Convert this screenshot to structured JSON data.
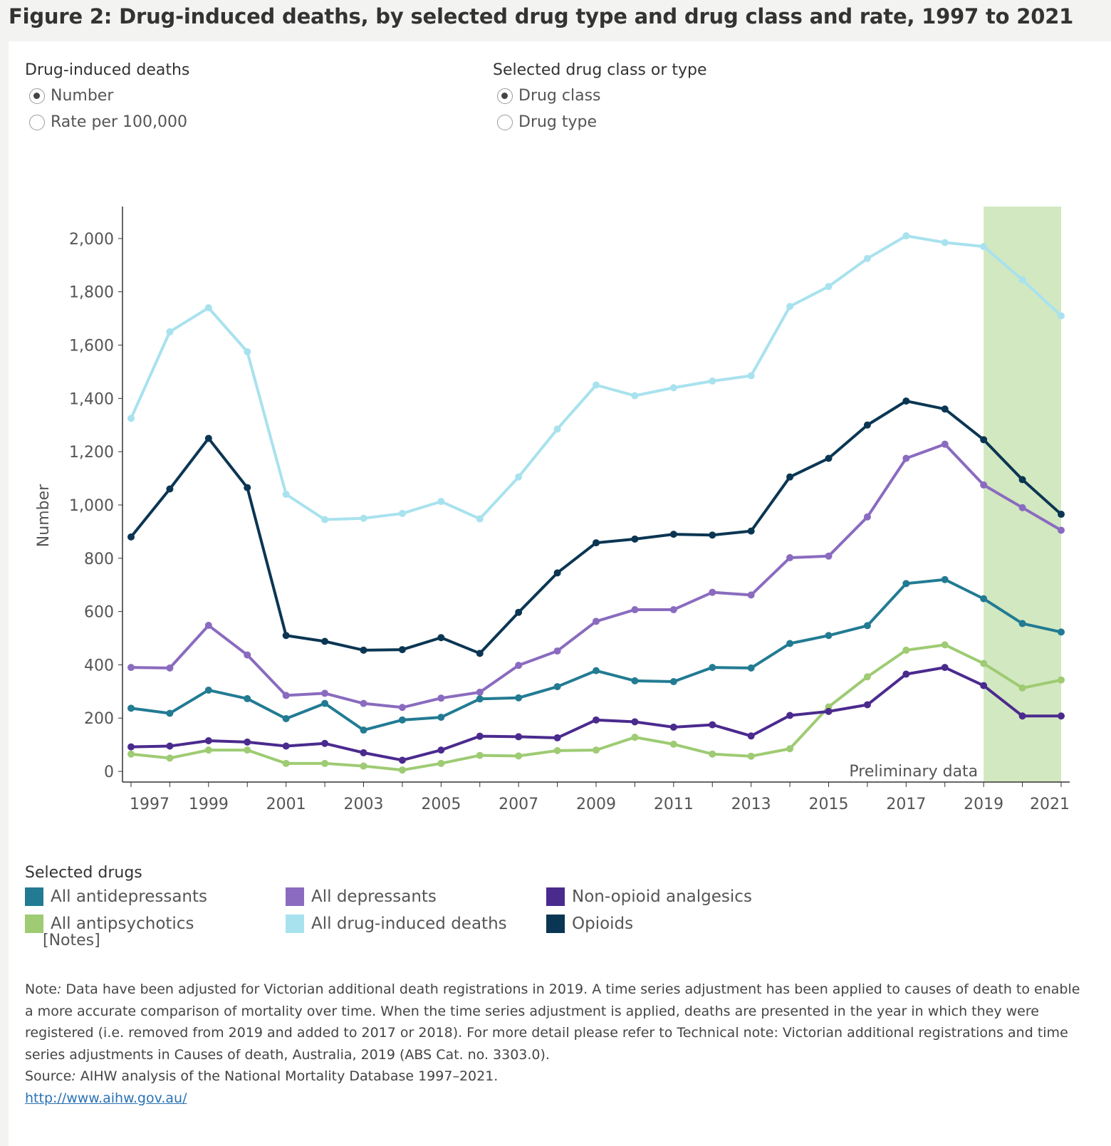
{
  "title": "Figure 2: Drug-induced deaths, by selected drug type and drug class and rate, 1997 to 2021",
  "controls": {
    "measure": {
      "title": "Drug-induced deaths",
      "options": [
        "Number",
        "Rate per 100,000"
      ],
      "selected": 0
    },
    "drug_group": {
      "title": "Selected drug class or type",
      "options": [
        "Drug class",
        "Drug type"
      ],
      "selected": 0
    }
  },
  "legend": {
    "title": "Selected drugs",
    "items": [
      {
        "label": "All antidepressants",
        "color": "#227b93"
      },
      {
        "label": "All depressants",
        "color": "#8a6bbf"
      },
      {
        "label": "Non-opioid analgesics",
        "color": "#4b2a8e"
      },
      {
        "label": "All antipsychotics",
        "color": "#9ecb73"
      },
      {
        "label": "All drug-induced deaths",
        "color": "#a8e2ee"
      },
      {
        "label": "Opioids",
        "color": "#0b3653"
      }
    ]
  },
  "notes_label": "[Notes]",
  "footnote": {
    "note_label": "Note",
    "note_text": " Data have been adjusted for Victorian additional death registrations in 2019. A time series adjustment has been applied to causes of death to enable a more accurate comparison of mortality over time. When the time series adjustment is applied, deaths are presented in the year in which they were registered (i.e. removed from 2019 and added to 2017 or 2018). For more detail please refer to Technical note: Victorian additional registrations and time series adjustments in Causes of death, Australia, 2019 (ABS Cat. no. 3303.0).",
    "source_label": "Source",
    "source_text": " AIHW analysis of the National Mortality Database 1997–2021.",
    "link": "http://www.aihw.gov.au/"
  },
  "chart_data": {
    "type": "line",
    "ylabel": "Number",
    "xlabel": "",
    "ylim": [
      -40,
      2120
    ],
    "yticks": [
      0,
      200,
      400,
      600,
      800,
      1000,
      1200,
      1400,
      1600,
      1800,
      2000
    ],
    "ytick_labels": [
      "0",
      "200",
      "400",
      "600",
      "800",
      "1,000",
      "1,200",
      "1,400",
      "1,600",
      "1,800",
      "2,000"
    ],
    "x": [
      1997,
      1998,
      1999,
      2000,
      2001,
      2002,
      2003,
      2004,
      2005,
      2006,
      2007,
      2008,
      2009,
      2010,
      2011,
      2012,
      2013,
      2014,
      2015,
      2016,
      2017,
      2018,
      2019,
      2020,
      2021
    ],
    "xtick_labels": [
      "1997",
      "1999",
      "2001",
      "2003",
      "2005",
      "2007",
      "2009",
      "2011",
      "2013",
      "2015",
      "2017",
      "2019",
      "2021"
    ],
    "shaded_region": {
      "from": 2019,
      "to": 2021,
      "label": "Preliminary data",
      "color": "#d2e8c0"
    },
    "series": [
      {
        "name": "All drug-induced deaths",
        "color": "#a8e2ee",
        "values": [
          1325,
          1650,
          1740,
          1575,
          1040,
          945,
          950,
          968,
          1013,
          948,
          1105,
          1285,
          1450,
          1410,
          1440,
          1465,
          1485,
          1745,
          1820,
          1925,
          2010,
          1985,
          1970,
          1845,
          1710
        ]
      },
      {
        "name": "Opioids",
        "color": "#0b3653",
        "values": [
          880,
          1060,
          1250,
          1065,
          510,
          488,
          455,
          457,
          502,
          443,
          597,
          745,
          858,
          872,
          890,
          887,
          902,
          1105,
          1175,
          1300,
          1390,
          1360,
          1245,
          1095,
          965
        ]
      },
      {
        "name": "All depressants",
        "color": "#8a6bbf",
        "values": [
          390,
          388,
          548,
          437,
          285,
          293,
          255,
          240,
          275,
          297,
          398,
          452,
          563,
          607,
          607,
          672,
          662,
          802,
          808,
          955,
          1175,
          1228,
          1075,
          990,
          905
        ]
      },
      {
        "name": "All antidepressants",
        "color": "#227b93",
        "values": [
          237,
          218,
          305,
          273,
          198,
          255,
          155,
          193,
          203,
          272,
          276,
          318,
          378,
          340,
          337,
          390,
          388,
          480,
          510,
          547,
          705,
          720,
          648,
          555,
          523
        ]
      },
      {
        "name": "All antipsychotics",
        "color": "#9ecb73",
        "values": [
          65,
          50,
          80,
          80,
          30,
          30,
          20,
          5,
          30,
          60,
          58,
          78,
          80,
          128,
          102,
          65,
          57,
          85,
          242,
          355,
          455,
          475,
          405,
          313,
          343
        ]
      },
      {
        "name": "Non-opioid analgesics",
        "color": "#4b2a8e",
        "values": [
          92,
          95,
          115,
          110,
          95,
          105,
          70,
          42,
          80,
          132,
          130,
          126,
          193,
          186,
          166,
          175,
          133,
          210,
          225,
          250,
          365,
          390,
          322,
          208,
          208
        ]
      }
    ]
  }
}
